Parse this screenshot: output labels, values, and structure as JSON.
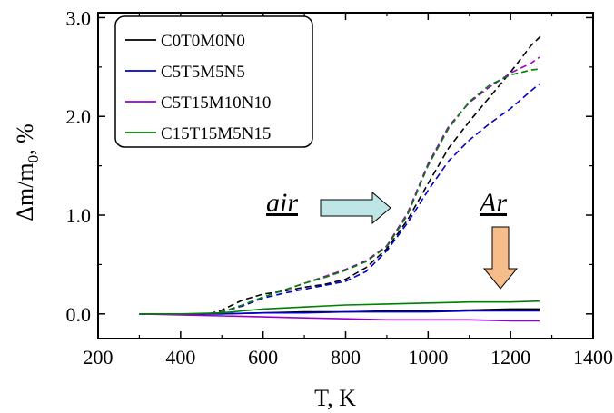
{
  "chart_data": {
    "type": "line",
    "xlabel": "T, K",
    "ylabel": "Δm/m",
    "ylabel_subscript": "0",
    "ylabel_suffix": ", %",
    "xlim": [
      200,
      1400
    ],
    "ylim": [
      -0.25,
      3.05
    ],
    "x_ticks": [
      {
        "value": 200,
        "label": "200"
      },
      {
        "value": 400,
        "label": "400"
      },
      {
        "value": 600,
        "label": "600"
      },
      {
        "value": 800,
        "label": "800"
      },
      {
        "value": 1000,
        "label": "1000"
      },
      {
        "value": 1200,
        "label": "1200"
      },
      {
        "value": 1400,
        "label": "1400"
      }
    ],
    "y_ticks": [
      {
        "value": 0,
        "label": "0.0"
      },
      {
        "value": 1,
        "label": "1.0"
      },
      {
        "value": 2,
        "label": "2.0"
      },
      {
        "value": 3,
        "label": "3.0"
      }
    ],
    "grid": false,
    "legend": {
      "placement": "top-left",
      "entries": [
        {
          "label": "C0T0M0N0",
          "color": "#000000"
        },
        {
          "label": "C5T5M5N5",
          "color": "#0000cc"
        },
        {
          "label": "C5T15M10N10",
          "color": "#9900cc"
        },
        {
          "label": "C15T15M5N15",
          "color": "#008000"
        }
      ]
    },
    "annotations": {
      "air": {
        "text": "air",
        "arrow": "right",
        "arrow_color": "#bfe6e6"
      },
      "ar": {
        "text": "Ar",
        "arrow": "down",
        "arrow_color": "#f6bd8a"
      }
    },
    "series": [
      {
        "name": "C0T0M0N0",
        "atmosphere": "air",
        "style": "dashed",
        "color": "#000000",
        "x": [
          300,
          400,
          470,
          500,
          550,
          600,
          650,
          700,
          750,
          800,
          850,
          900,
          950,
          1000,
          1050,
          1100,
          1150,
          1200,
          1250,
          1275
        ],
        "y": [
          0.0,
          0.0,
          0.0,
          0.04,
          0.14,
          0.2,
          0.23,
          0.27,
          0.3,
          0.35,
          0.47,
          0.66,
          0.95,
          1.32,
          1.68,
          1.95,
          2.2,
          2.45,
          2.72,
          2.82
        ]
      },
      {
        "name": "C5T5M5N5",
        "atmosphere": "air",
        "style": "dashed",
        "color": "#0000cc",
        "x": [
          300,
          400,
          470,
          500,
          550,
          600,
          650,
          700,
          750,
          800,
          850,
          900,
          950,
          1000,
          1050,
          1100,
          1150,
          1200,
          1250,
          1270
        ],
        "y": [
          0.0,
          0.0,
          0.0,
          0.02,
          0.08,
          0.16,
          0.21,
          0.25,
          0.29,
          0.33,
          0.43,
          0.64,
          0.92,
          1.25,
          1.55,
          1.76,
          1.93,
          2.08,
          2.26,
          2.33
        ]
      },
      {
        "name": "C5T15M10N10",
        "atmosphere": "air",
        "style": "dashed",
        "color": "#9900cc",
        "x": [
          300,
          400,
          470,
          500,
          550,
          600,
          650,
          700,
          750,
          800,
          850,
          900,
          950,
          1000,
          1050,
          1100,
          1150,
          1200,
          1250,
          1270
        ],
        "y": [
          0.0,
          0.0,
          0.0,
          0.02,
          0.09,
          0.17,
          0.24,
          0.31,
          0.38,
          0.45,
          0.54,
          0.69,
          1.02,
          1.52,
          1.9,
          2.14,
          2.3,
          2.44,
          2.54,
          2.6
        ]
      },
      {
        "name": "C15T15M5N15",
        "atmosphere": "air",
        "style": "dashed",
        "color": "#008000",
        "x": [
          300,
          400,
          470,
          500,
          550,
          600,
          650,
          700,
          750,
          800,
          850,
          900,
          950,
          1000,
          1050,
          1100,
          1150,
          1200,
          1250,
          1270
        ],
        "y": [
          0.0,
          0.0,
          0.0,
          0.02,
          0.09,
          0.17,
          0.24,
          0.31,
          0.37,
          0.44,
          0.53,
          0.68,
          1.0,
          1.5,
          1.88,
          2.15,
          2.32,
          2.42,
          2.47,
          2.48
        ]
      },
      {
        "name": "C0T0M0N0",
        "atmosphere": "Ar",
        "style": "solid",
        "color": "#000000",
        "x": [
          300,
          400,
          500,
          600,
          700,
          800,
          900,
          1000,
          1100,
          1200,
          1270
        ],
        "y": [
          0.0,
          0.0,
          0.0,
          0.01,
          0.02,
          0.02,
          0.03,
          0.03,
          0.04,
          0.05,
          0.05
        ]
      },
      {
        "name": "C5T5M5N5",
        "atmosphere": "Ar",
        "style": "solid",
        "color": "#0000cc",
        "x": [
          300,
          400,
          500,
          600,
          700,
          800,
          900,
          1000,
          1100,
          1200,
          1270
        ],
        "y": [
          0.0,
          0.0,
          0.0,
          0.01,
          0.01,
          0.02,
          0.02,
          0.02,
          0.03,
          0.03,
          0.03
        ]
      },
      {
        "name": "C5T15M10N10",
        "atmosphere": "Ar",
        "style": "solid",
        "color": "#9900cc",
        "x": [
          300,
          400,
          500,
          600,
          700,
          800,
          900,
          1000,
          1100,
          1200,
          1270
        ],
        "y": [
          0.0,
          -0.01,
          -0.02,
          -0.03,
          -0.04,
          -0.05,
          -0.06,
          -0.06,
          -0.06,
          -0.07,
          -0.07
        ]
      },
      {
        "name": "C15T15M5N15",
        "atmosphere": "Ar",
        "style": "solid",
        "color": "#008000",
        "x": [
          300,
          400,
          500,
          550,
          600,
          700,
          800,
          900,
          1000,
          1100,
          1200,
          1270
        ],
        "y": [
          0.0,
          0.0,
          0.01,
          0.03,
          0.05,
          0.07,
          0.09,
          0.1,
          0.11,
          0.12,
          0.12,
          0.13
        ]
      }
    ]
  }
}
